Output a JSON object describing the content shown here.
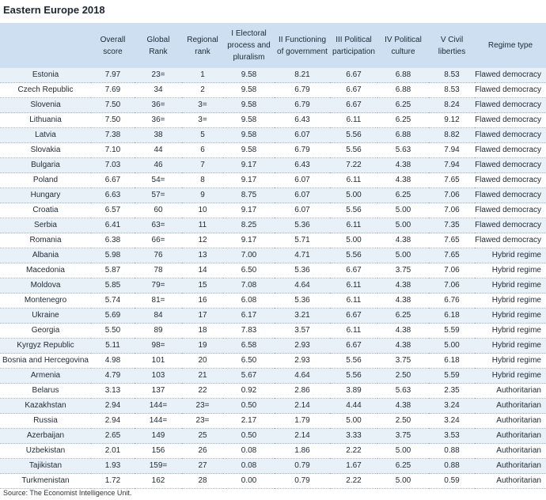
{
  "title": "Eastern Europe 2018",
  "table": {
    "header": [
      [
        ""
      ],
      [
        "Overall",
        "score"
      ],
      [
        "Global",
        "Rank"
      ],
      [
        "Regional",
        "rank"
      ],
      [
        "I Electoral",
        "process and",
        "pluralism"
      ],
      [
        "II Functioning",
        "of government"
      ],
      [
        "III Political",
        "participation"
      ],
      [
        "IV Political",
        "culture"
      ],
      [
        "V Civil",
        "liberties"
      ],
      [
        "Regime type"
      ]
    ],
    "rows": [
      [
        "Estonia",
        "7.97",
        "23=",
        "1",
        "9.58",
        "8.21",
        "6.67",
        "6.88",
        "8.53",
        "Flawed democracy"
      ],
      [
        "Czech Republic",
        "7.69",
        "34",
        "2",
        "9.58",
        "6.79",
        "6.67",
        "6.88",
        "8.53",
        "Flawed democracy"
      ],
      [
        "Slovenia",
        "7.50",
        "36=",
        "3=",
        "9.58",
        "6.79",
        "6.67",
        "6.25",
        "8.24",
        "Flawed democracy"
      ],
      [
        "Lithuania",
        "7.50",
        "36=",
        "3=",
        "9.58",
        "6.43",
        "6.11",
        "6.25",
        "9.12",
        "Flawed democracy"
      ],
      [
        "Latvia",
        "7.38",
        "38",
        "5",
        "9.58",
        "6.07",
        "5.56",
        "6.88",
        "8.82",
        "Flawed democracy"
      ],
      [
        "Slovakia",
        "7.10",
        "44",
        "6",
        "9.58",
        "6.79",
        "5.56",
        "5.63",
        "7.94",
        "Flawed democracy"
      ],
      [
        "Bulgaria",
        "7.03",
        "46",
        "7",
        "9.17",
        "6.43",
        "7.22",
        "4.38",
        "7.94",
        "Flawed democracy"
      ],
      [
        "Poland",
        "6.67",
        "54=",
        "8",
        "9.17",
        "6.07",
        "6.11",
        "4.38",
        "7.65",
        "Flawed democracy"
      ],
      [
        "Hungary",
        "6.63",
        "57=",
        "9",
        "8.75",
        "6.07",
        "5.00",
        "6.25",
        "7.06",
        "Flawed democracy"
      ],
      [
        "Croatia",
        "6.57",
        "60",
        "10",
        "9.17",
        "6.07",
        "5.56",
        "5.00",
        "7.06",
        "Flawed democracy"
      ],
      [
        "Serbia",
        "6.41",
        "63=",
        "11",
        "8.25",
        "5.36",
        "6.11",
        "5.00",
        "7.35",
        "Flawed democracy"
      ],
      [
        "Romania",
        "6.38",
        "66=",
        "12",
        "9.17",
        "5.71",
        "5.00",
        "4.38",
        "7.65",
        "Flawed democracy"
      ],
      [
        "Albania",
        "5.98",
        "76",
        "13",
        "7.00",
        "4.71",
        "5.56",
        "5.00",
        "7.65",
        "Hybrid regime"
      ],
      [
        "Macedonia",
        "5.87",
        "78",
        "14",
        "6.50",
        "5.36",
        "6.67",
        "3.75",
        "7.06",
        "Hybrid regime"
      ],
      [
        "Moldova",
        "5.85",
        "79=",
        "15",
        "7.08",
        "4.64",
        "6.11",
        "4.38",
        "7.06",
        "Hybrid regime"
      ],
      [
        "Montenegro",
        "5.74",
        "81=",
        "16",
        "6.08",
        "5.36",
        "6.11",
        "4.38",
        "6.76",
        "Hybrid regime"
      ],
      [
        "Ukraine",
        "5.69",
        "84",
        "17",
        "6.17",
        "3.21",
        "6.67",
        "6.25",
        "6.18",
        "Hybrid regime"
      ],
      [
        "Georgia",
        "5.50",
        "89",
        "18",
        "7.83",
        "3.57",
        "6.11",
        "4.38",
        "5.59",
        "Hybrid regime"
      ],
      [
        "Kyrgyz Republic",
        "5.11",
        "98=",
        "19",
        "6.58",
        "2.93",
        "6.67",
        "4.38",
        "5.00",
        "Hybrid regime"
      ],
      [
        "Bosnia and Hercegovina",
        "4.98",
        "101",
        "20",
        "6.50",
        "2.93",
        "5.56",
        "3.75",
        "6.18",
        "Hybrid regime"
      ],
      [
        "Armenia",
        "4.79",
        "103",
        "21",
        "5.67",
        "4.64",
        "5.56",
        "2.50",
        "5.59",
        "Hybrid regime"
      ],
      [
        "Belarus",
        "3.13",
        "137",
        "22",
        "0.92",
        "2.86",
        "3.89",
        "5.63",
        "2.35",
        "Authoritarian"
      ],
      [
        "Kazakhstan",
        "2.94",
        "144=",
        "23=",
        "0.50",
        "2.14",
        "4.44",
        "4.38",
        "3.24",
        "Authoritarian"
      ],
      [
        "Russia",
        "2.94",
        "144=",
        "23=",
        "2.17",
        "1.79",
        "5.00",
        "2.50",
        "3.24",
        "Authoritarian"
      ],
      [
        "Azerbaijan",
        "2.65",
        "149",
        "25",
        "0.50",
        "2.14",
        "3.33",
        "3.75",
        "3.53",
        "Authoritarian"
      ],
      [
        "Uzbekistan",
        "2.01",
        "156",
        "26",
        "0.08",
        "1.86",
        "2.22",
        "5.00",
        "0.88",
        "Authoritarian"
      ],
      [
        "Tajikistan",
        "1.93",
        "159=",
        "27",
        "0.08",
        "0.79",
        "1.67",
        "6.25",
        "0.88",
        "Authoritarian"
      ],
      [
        "Turkmenistan",
        "1.72",
        "162",
        "28",
        "0.00",
        "0.79",
        "2.22",
        "5.00",
        "0.59",
        "Authoritarian"
      ]
    ]
  },
  "source": "Source: The Economist Intelligence Unit."
}
